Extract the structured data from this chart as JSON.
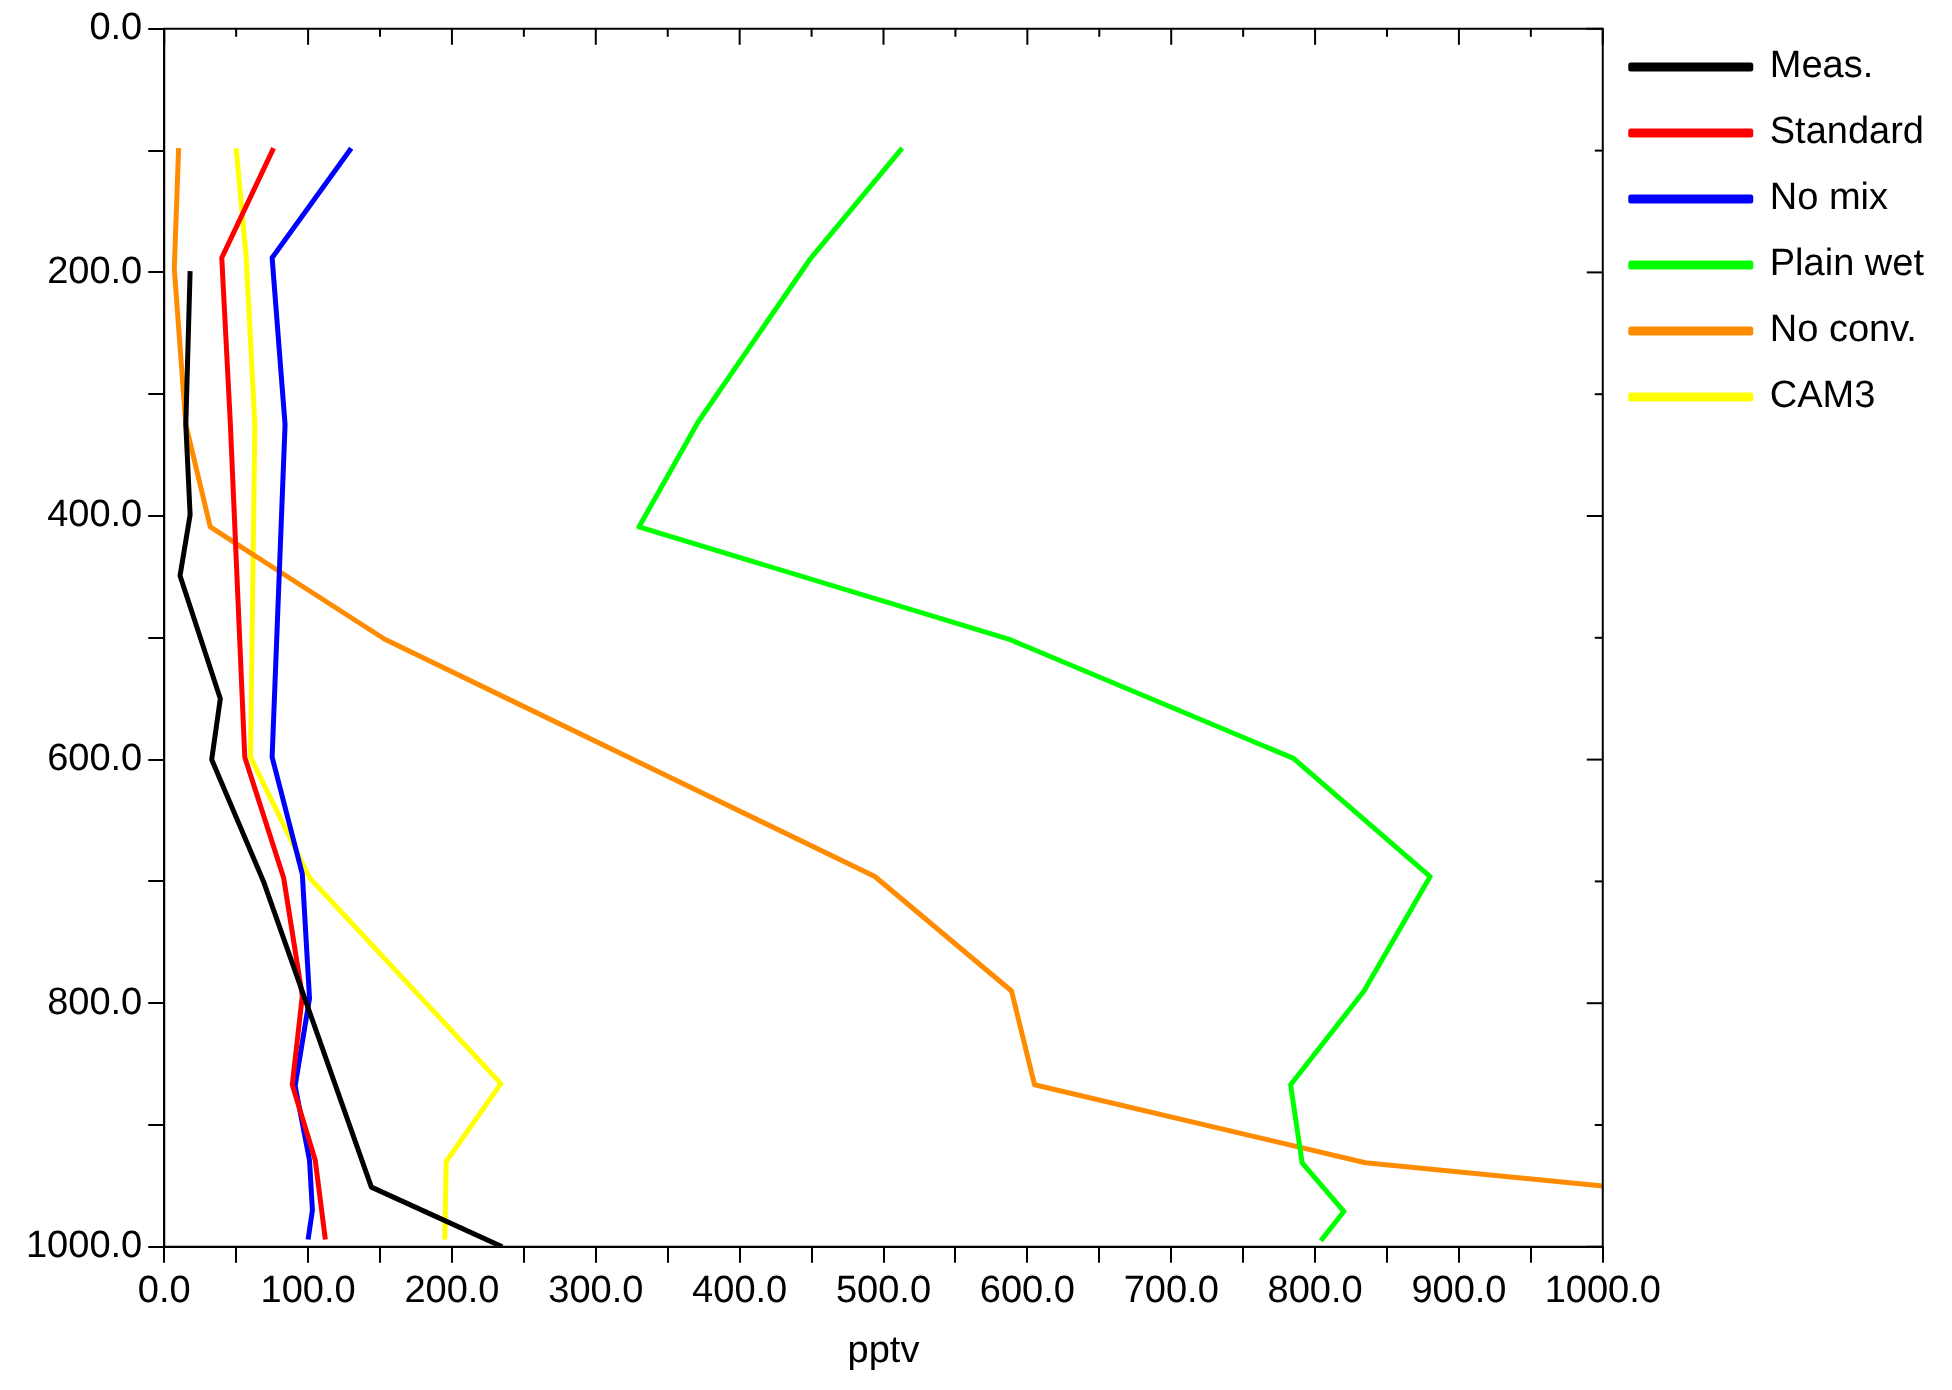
{
  "chart_data": {
    "type": "line",
    "xlabel": "pptv",
    "legend": "right",
    "marker": "none",
    "line_style": "solid",
    "grid": false,
    "xlim": [
      0,
      1000
    ],
    "ylim": [
      1000,
      0
    ],
    "xticks": [
      {
        "value": 0,
        "label": "0.0"
      },
      {
        "value": 50,
        "label": null
      },
      {
        "value": 100,
        "label": "100.0"
      },
      {
        "value": 150,
        "label": null
      },
      {
        "value": 200,
        "label": "200.0"
      },
      {
        "value": 250,
        "label": null
      },
      {
        "value": 300,
        "label": "300.0"
      },
      {
        "value": 350,
        "label": null
      },
      {
        "value": 400,
        "label": "400.0"
      },
      {
        "value": 450,
        "label": null
      },
      {
        "value": 500,
        "label": "500.0"
      },
      {
        "value": 550,
        "label": null
      },
      {
        "value": 600,
        "label": "600.0"
      },
      {
        "value": 650,
        "label": null
      },
      {
        "value": 700,
        "label": "700.0"
      },
      {
        "value": 750,
        "label": null
      },
      {
        "value": 800,
        "label": "800.0"
      },
      {
        "value": 850,
        "label": null
      },
      {
        "value": 900,
        "label": "900.0"
      },
      {
        "value": 950,
        "label": null
      },
      {
        "value": 1000,
        "label": "1000.0"
      }
    ],
    "yticks": [
      {
        "value": 0,
        "label": "0.0"
      },
      {
        "value": 100,
        "label": null
      },
      {
        "value": 200,
        "label": "200.0"
      },
      {
        "value": 300,
        "label": null
      },
      {
        "value": 400,
        "label": "400.0"
      },
      {
        "value": 500,
        "label": null
      },
      {
        "value": 600,
        "label": "600.0"
      },
      {
        "value": 700,
        "label": null
      },
      {
        "value": 800,
        "label": "800.0"
      },
      {
        "value": 900,
        "label": null
      },
      {
        "value": 1000,
        "label": "1000.0"
      }
    ],
    "series": [
      {
        "name": "Meas.",
        "color": "#000000",
        "x": [
          18,
          15,
          18,
          11,
          39,
          33,
          69,
          144,
          235
        ],
        "values": [
          199,
          325,
          399,
          449,
          550,
          600,
          700,
          951,
          1000
        ]
      },
      {
        "name": "Standard",
        "color": "#ff0000",
        "x": [
          76,
          40,
          46,
          56,
          83,
          96,
          89,
          105,
          112
        ],
        "values": [
          98,
          188,
          325,
          598,
          697,
          794,
          867,
          929,
          994
        ]
      },
      {
        "name": "No mix",
        "color": "#0000ff",
        "x": [
          130,
          75,
          84,
          75,
          96,
          101,
          91,
          101,
          103,
          100
        ],
        "values": [
          98,
          188,
          325,
          598,
          694,
          796,
          868,
          929,
          970,
          994
        ]
      },
      {
        "name": "Plain wet",
        "color": "#00ff00",
        "x": [
          513,
          449,
          371,
          330,
          587,
          785,
          880,
          834,
          783,
          791,
          820,
          804
        ],
        "values": [
          98,
          189,
          323,
          409,
          501,
          599,
          696,
          790,
          867,
          931,
          971,
          995
        ]
      },
      {
        "name": "No conv.",
        "color": "#ff8c00",
        "x": [
          10,
          7,
          15,
          32,
          153,
          494,
          589,
          605,
          835,
          1000
        ],
        "values": [
          98,
          197,
          325,
          409,
          501,
          696,
          790,
          867,
          931,
          950
        ]
      },
      {
        "name": "CAM3",
        "color": "#ffff00",
        "x": [
          50,
          57,
          63,
          60,
          101,
          234,
          196,
          195
        ],
        "values": [
          98,
          188,
          325,
          598,
          697,
          866,
          930,
          994
        ]
      }
    ]
  }
}
